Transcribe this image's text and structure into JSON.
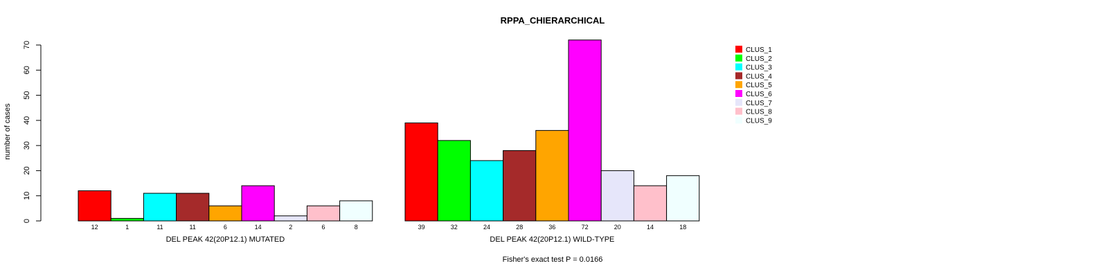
{
  "chart_data": {
    "type": "bar",
    "title": "RPPA_CHIERARCHICAL",
    "ylabel": "number of cases",
    "ylim": [
      0,
      70
    ],
    "yticks": [
      0,
      10,
      20,
      30,
      40,
      50,
      60,
      70
    ],
    "groups": [
      {
        "name": "DEL PEAK 42(20P12.1) MUTATED",
        "values": [
          12,
          1,
          11,
          11,
          6,
          14,
          2,
          6,
          8
        ]
      },
      {
        "name": "DEL PEAK 42(20P12.1) WILD-TYPE",
        "values": [
          39,
          32,
          24,
          28,
          36,
          72,
          20,
          14,
          18
        ]
      }
    ],
    "series": [
      {
        "name": "CLUS_1",
        "color": "#ff0000"
      },
      {
        "name": "CLUS_2",
        "color": "#00ff00"
      },
      {
        "name": "CLUS_3",
        "color": "#00ffff"
      },
      {
        "name": "CLUS_4",
        "color": "#a52a2a"
      },
      {
        "name": "CLUS_5",
        "color": "#ffa500"
      },
      {
        "name": "CLUS_6",
        "color": "#ff00ff"
      },
      {
        "name": "CLUS_7",
        "color": "#e6e6fa"
      },
      {
        "name": "CLUS_8",
        "color": "#ffc0cb"
      },
      {
        "name": "CLUS_9",
        "color": "#f0ffff"
      }
    ],
    "footnote": "Fisher's exact test P = 0.0166",
    "legend_position": "top-right"
  }
}
